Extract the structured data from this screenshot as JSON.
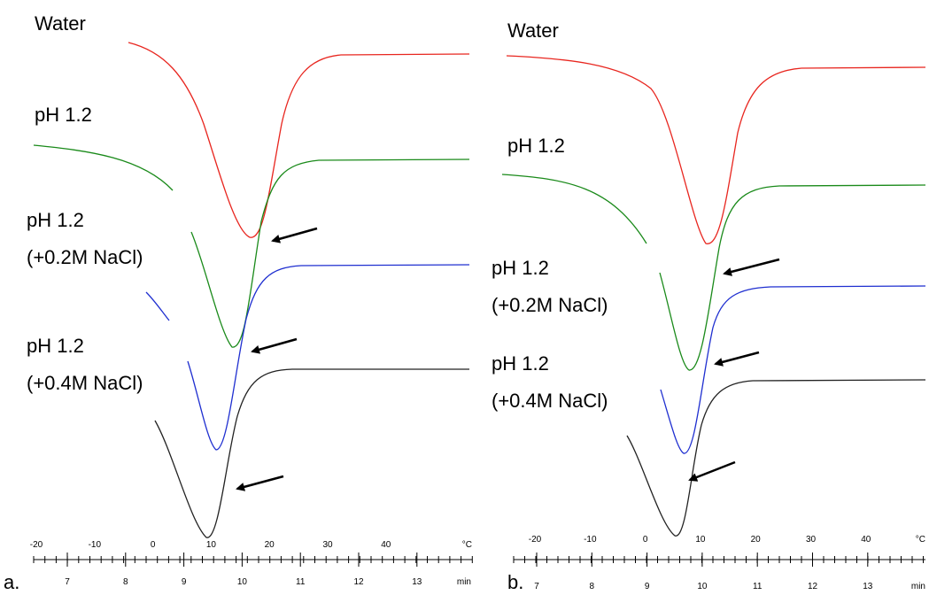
{
  "colors": {
    "water": "#e8261f",
    "ph12": "#1a8a1a",
    "nacl02": "#1f2fd0",
    "nacl04": "#222222",
    "axis": "#000000",
    "arrow": "#000000"
  },
  "panels": [
    {
      "id": "a",
      "panel_label": "a.",
      "labels": {
        "water": "Water",
        "ph12": "pH 1.2",
        "nacl02_line1": "pH 1.2",
        "nacl02_line2": "(+0.2M NaCl)",
        "nacl04_line1": "pH 1.2",
        "nacl04_line2": "(+0.4M NaCl)"
      },
      "temp_ticks": [
        "-20",
        "-10",
        "0",
        "10",
        "20",
        "30",
        "40"
      ],
      "temp_unit": "°C",
      "time_ticks": [
        "7",
        "8",
        "9",
        "10",
        "11",
        "12",
        "13"
      ],
      "time_unit": "min"
    },
    {
      "id": "b",
      "panel_label": "b.",
      "labels": {
        "water": "Water",
        "ph12": "pH 1.2",
        "nacl02_line1": "pH 1.2",
        "nacl02_line2": "(+0.2M NaCl)",
        "nacl04_line1": "pH 1.2",
        "nacl04_line2": "(+0.4M NaCl)"
      },
      "temp_ticks": [
        "-20",
        "-10",
        "0",
        "10",
        "20",
        "30",
        "40"
      ],
      "temp_unit": "°C",
      "time_ticks": [
        "7",
        "8",
        "9",
        "10",
        "11",
        "12",
        "13"
      ],
      "time_unit": "min"
    }
  ],
  "chart_data": [
    {
      "type": "line",
      "panel": "a",
      "x_unit": "°C",
      "x_secondary_unit": "min",
      "xlim_temp": [
        -28,
        45
      ],
      "grid": false,
      "series": [
        {
          "name": "Water",
          "peak_temp": 11,
          "color": "#e8261f"
        },
        {
          "name": "pH 1.2",
          "peak_temp": 8.5,
          "color": "#1a8a1a"
        },
        {
          "name": "pH 1.2 (+0.2M NaCl)",
          "peak_temp": 5,
          "color": "#1f2fd0"
        },
        {
          "name": "pH 1.2 (+0.4M NaCl)",
          "peak_temp": 3.5,
          "color": "#222222"
        }
      ]
    },
    {
      "type": "line",
      "panel": "b",
      "x_unit": "°C",
      "x_secondary_unit": "min",
      "xlim_temp": [
        -28,
        45
      ],
      "grid": false,
      "series": [
        {
          "name": "Water",
          "peak_temp": 11.5,
          "color": "#e8261f"
        },
        {
          "name": "pH 1.2",
          "peak_temp": 7,
          "color": "#1a8a1a"
        },
        {
          "name": "pH 1.2 (+0.2M NaCl)",
          "peak_temp": 6.5,
          "color": "#1f2fd0"
        },
        {
          "name": "pH 1.2 (+0.4M NaCl)",
          "peak_temp": 5,
          "color": "#222222"
        }
      ]
    }
  ]
}
